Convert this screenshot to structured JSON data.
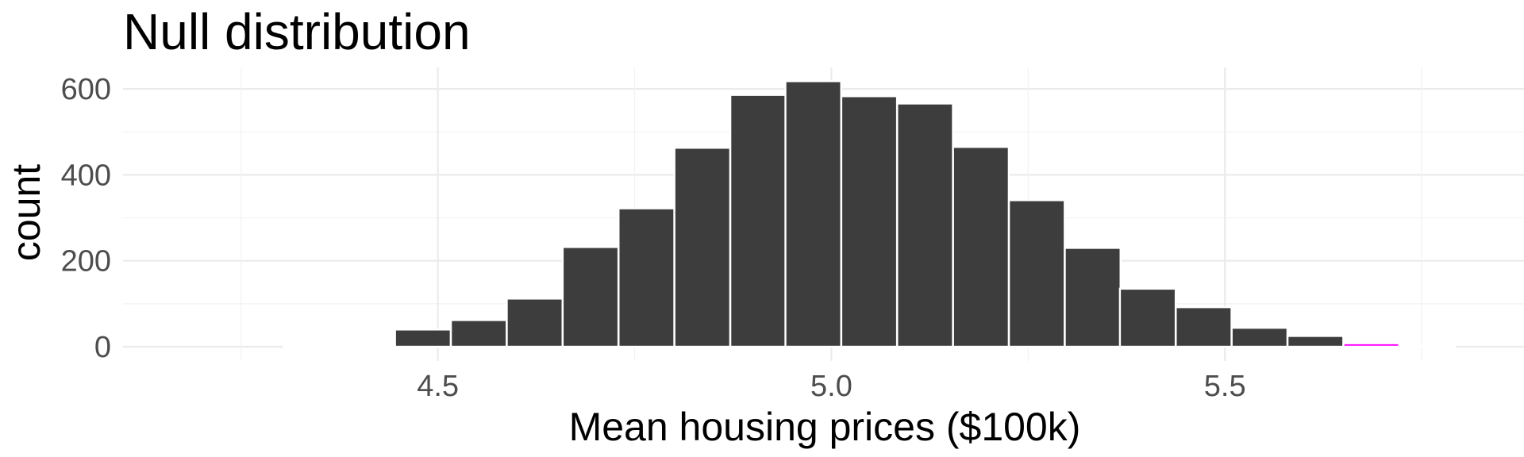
{
  "chart_data": {
    "type": "bar",
    "title": "Null distribution",
    "xlabel": "Mean housing prices ($100k)",
    "ylabel": "count",
    "xlim": [
      4.1,
      5.88
    ],
    "ylim": [
      0,
      650
    ],
    "x_ticks": [
      4.5,
      5.0,
      5.5
    ],
    "x_tick_labels": [
      "4.5",
      "5.0",
      "5.5"
    ],
    "y_ticks": [
      0,
      200,
      400,
      600
    ],
    "y_tick_labels": [
      "0",
      "200",
      "400",
      "600"
    ],
    "grid": true,
    "bin_width": 0.0708,
    "bins": [
      {
        "center": 4.34,
        "count": 4,
        "highlight": true
      },
      {
        "center": 4.411,
        "count": 4,
        "highlight": true
      },
      {
        "center": 4.481,
        "count": 40,
        "highlight": false
      },
      {
        "center": 4.552,
        "count": 62,
        "highlight": false
      },
      {
        "center": 4.623,
        "count": 112,
        "highlight": false
      },
      {
        "center": 4.694,
        "count": 232,
        "highlight": false
      },
      {
        "center": 4.765,
        "count": 322,
        "highlight": false
      },
      {
        "center": 4.836,
        "count": 463,
        "highlight": false
      },
      {
        "center": 4.907,
        "count": 586,
        "highlight": false
      },
      {
        "center": 4.977,
        "count": 618,
        "highlight": false
      },
      {
        "center": 5.048,
        "count": 583,
        "highlight": false
      },
      {
        "center": 5.119,
        "count": 566,
        "highlight": false
      },
      {
        "center": 5.19,
        "count": 465,
        "highlight": false
      },
      {
        "center": 5.261,
        "count": 341,
        "highlight": false
      },
      {
        "center": 5.332,
        "count": 230,
        "highlight": false
      },
      {
        "center": 5.402,
        "count": 135,
        "highlight": false
      },
      {
        "center": 5.473,
        "count": 92,
        "highlight": false
      },
      {
        "center": 5.544,
        "count": 44,
        "highlight": false
      },
      {
        "center": 5.615,
        "count": 25,
        "highlight": false
      },
      {
        "center": 5.686,
        "count": 8,
        "highlight": true
      },
      {
        "center": 5.757,
        "count": 2,
        "highlight": true
      }
    ],
    "colors": {
      "bar": "#3d3d3d",
      "highlight_bar": "#ff00ff",
      "highlight_tail": "#ffccff"
    }
  }
}
